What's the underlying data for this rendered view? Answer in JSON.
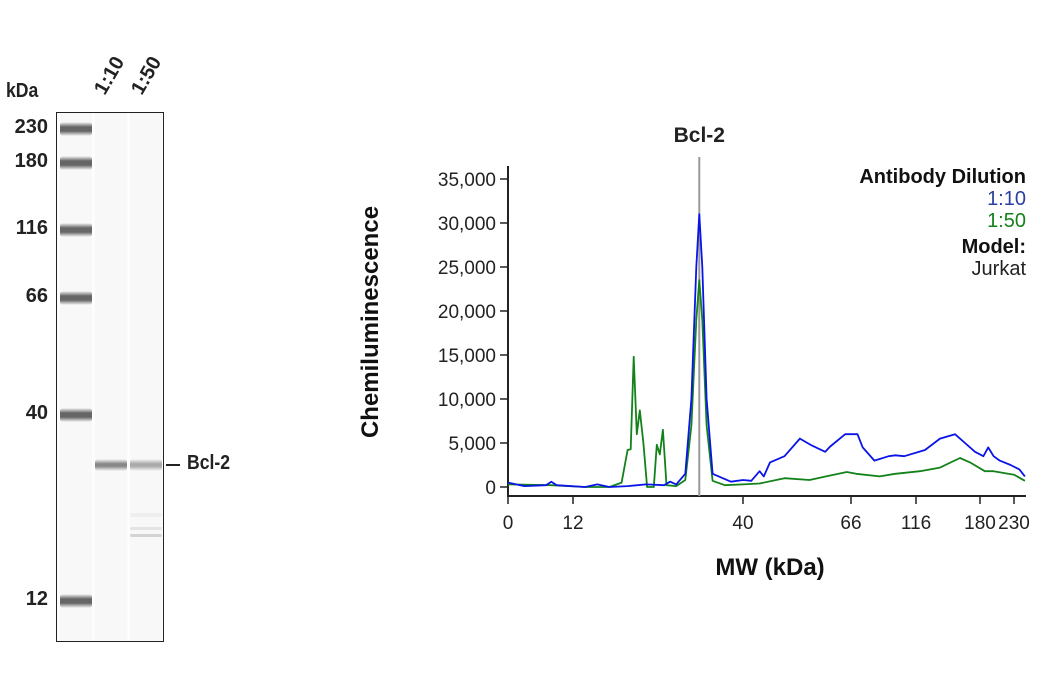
{
  "blot": {
    "unit_label": "kDa",
    "lanes": [
      "1:10",
      "1:50"
    ],
    "ladder": [
      "230",
      "180",
      "116",
      "66",
      "40",
      "12"
    ],
    "target_label": "Bcl-2"
  },
  "chart_data": {
    "type": "line",
    "title": "Bcl-2",
    "xlabel": "MW (kDa)",
    "ylabel": "Chemiluminescence",
    "x_ticks": [
      0,
      12,
      40,
      66,
      116,
      180,
      230
    ],
    "x_tick_labels": [
      "0",
      "12",
      "40",
      "66",
      "116",
      "180",
      "230"
    ],
    "x_scale": "non-linear (MW calibrated)",
    "xlim": [
      0,
      246
    ],
    "ylim": [
      0,
      36000
    ],
    "y_ticks": [
      0,
      5000,
      10000,
      15000,
      20000,
      25000,
      30000,
      35000
    ],
    "y_tick_labels": [
      "0",
      "5,000",
      "10,000",
      "15,000",
      "20,000",
      "25,000",
      "30,000",
      "35,000"
    ],
    "marker_line": {
      "x": 32.8,
      "label": "Bcl-2",
      "color": "#999999"
    },
    "grid": false,
    "legend": {
      "placement": "top-right",
      "title": "Antibody Dilution",
      "model_label": "Model:",
      "model_value": "Jurkat"
    },
    "series": [
      {
        "name": "1:10",
        "color": "#0a14e6",
        "label_color": "#2b3fa0",
        "points": [
          [
            0,
            500
          ],
          [
            3,
            100
          ],
          [
            7,
            200
          ],
          [
            8,
            600
          ],
          [
            9,
            200
          ],
          [
            14,
            0
          ],
          [
            16,
            300
          ],
          [
            18,
            0
          ],
          [
            21,
            100
          ],
          [
            24,
            300
          ],
          [
            27,
            200
          ],
          [
            28,
            600
          ],
          [
            29,
            300
          ],
          [
            30.5,
            1500
          ],
          [
            31.5,
            10000
          ],
          [
            32.3,
            25000
          ],
          [
            32.8,
            31000
          ],
          [
            33.3,
            25000
          ],
          [
            34,
            10000
          ],
          [
            35,
            1500
          ],
          [
            36,
            1200
          ],
          [
            38,
            600
          ],
          [
            40,
            800
          ],
          [
            42,
            700
          ],
          [
            44,
            1800
          ],
          [
            45,
            1200
          ],
          [
            46.5,
            2800
          ],
          [
            50,
            3500
          ],
          [
            53.7,
            5500
          ],
          [
            56.6,
            4700
          ],
          [
            59.8,
            4000
          ],
          [
            61,
            4600
          ],
          [
            64.6,
            6000
          ],
          [
            66,
            6000
          ],
          [
            71,
            6000
          ],
          [
            75,
            4500
          ],
          [
            84,
            3000
          ],
          [
            95,
            3500
          ],
          [
            100,
            3600
          ],
          [
            107,
            3500
          ],
          [
            125,
            4200
          ],
          [
            140,
            5500
          ],
          [
            155,
            6000
          ],
          [
            165,
            5000
          ],
          [
            175,
            4000
          ],
          [
            185,
            3500
          ],
          [
            192,
            4500
          ],
          [
            200,
            3500
          ],
          [
            209,
            3000
          ],
          [
            225,
            2500
          ],
          [
            238,
            2000
          ],
          [
            246,
            1200
          ]
        ]
      },
      {
        "name": "1:50",
        "color": "#13821a",
        "label_color": "#13821a",
        "points": [
          [
            0,
            300
          ],
          [
            8,
            200
          ],
          [
            14,
            0
          ],
          [
            18,
            0
          ],
          [
            20,
            500
          ],
          [
            21,
            4200
          ],
          [
            21.5,
            4300
          ],
          [
            22,
            14800
          ],
          [
            22.5,
            6000
          ],
          [
            23,
            8700
          ],
          [
            23.6,
            5000
          ],
          [
            24.2,
            0
          ],
          [
            25.3,
            0
          ],
          [
            25.8,
            4800
          ],
          [
            26.3,
            3700
          ],
          [
            26.8,
            6500
          ],
          [
            27.4,
            200
          ],
          [
            29,
            100
          ],
          [
            30.5,
            800
          ],
          [
            31.5,
            7000
          ],
          [
            32.3,
            19000
          ],
          [
            32.8,
            23500
          ],
          [
            33.3,
            19000
          ],
          [
            34,
            7000
          ],
          [
            35,
            700
          ],
          [
            37,
            200
          ],
          [
            40,
            300
          ],
          [
            44,
            400
          ],
          [
            50,
            1000
          ],
          [
            56,
            800
          ],
          [
            60,
            1200
          ],
          [
            65,
            1700
          ],
          [
            70,
            1500
          ],
          [
            88,
            1200
          ],
          [
            100,
            1500
          ],
          [
            120,
            1800
          ],
          [
            140,
            2200
          ],
          [
            160,
            3300
          ],
          [
            170,
            2800
          ],
          [
            187,
            1800
          ],
          [
            200,
            1800
          ],
          [
            230,
            1400
          ],
          [
            246,
            700
          ]
        ]
      }
    ]
  }
}
